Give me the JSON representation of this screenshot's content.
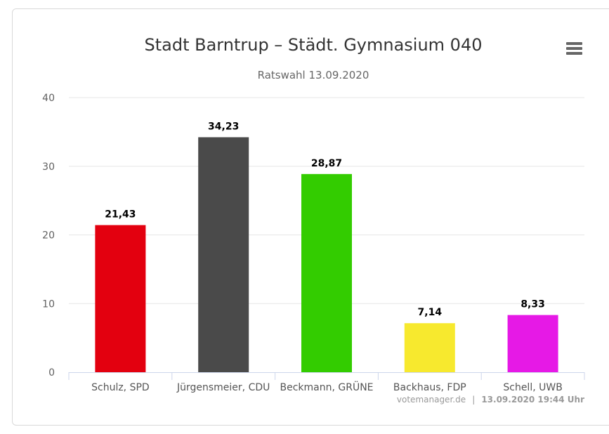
{
  "chart_data": {
    "type": "bar",
    "title": "Stadt Barntrup – Städt. Gymnasium 040",
    "subtitle": "Ratswahl 13.09.2020",
    "categories": [
      "Schulz, SPD",
      "Jürgensmeier, CDU",
      "Beckmann, GRÜNE",
      "Backhaus, FDP",
      "Schell, UWB"
    ],
    "values": [
      21.43,
      34.23,
      28.87,
      7.14,
      8.33
    ],
    "value_labels": [
      "21,43",
      "34,23",
      "28,87",
      "7,14",
      "8,33"
    ],
    "colors": [
      "#e3000f",
      "#4a4a4a",
      "#33cc00",
      "#f7e92e",
      "#e619e6"
    ],
    "ylim": [
      0,
      40
    ],
    "yticks": [
      "0",
      "10",
      "20",
      "30",
      "40"
    ],
    "grid": true,
    "legend": "none"
  },
  "menu_icon": "hamburger-menu-icon",
  "credits": {
    "source": "votemanager.de",
    "separator": "|",
    "timestamp": "13.09.2020 19:44 Uhr"
  }
}
